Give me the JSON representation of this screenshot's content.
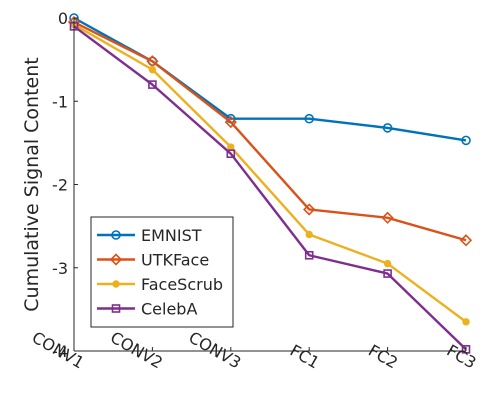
{
  "chart_data": {
    "type": "line",
    "title": "",
    "xlabel": "",
    "ylabel": "Cumulative Signal Content",
    "categories": [
      "CONV1",
      "CONV2",
      "CONV3",
      "FC1",
      "FC2",
      "FC3"
    ],
    "ylim": [
      -4,
      0
    ],
    "yticks": [
      0,
      -1,
      -2,
      -3,
      -4
    ],
    "grid": false,
    "legend_position": "bottom-left",
    "series": [
      {
        "name": "EMNIST",
        "color": "#0072BD",
        "marker": "circle",
        "values": [
          0.0,
          -0.52,
          -1.21,
          -1.21,
          -1.32,
          -1.47
        ]
      },
      {
        "name": "UTKFace",
        "color": "#D95319",
        "marker": "diamond",
        "values": [
          -0.05,
          -0.52,
          -1.25,
          -2.3,
          -2.4,
          -2.67
        ]
      },
      {
        "name": "FaceScrub",
        "color": "#EDB120",
        "marker": "dot",
        "values": [
          -0.08,
          -0.62,
          -1.55,
          -2.6,
          -2.95,
          -3.65
        ]
      },
      {
        "name": "CelebA",
        "color": "#7E2F8E",
        "marker": "square",
        "values": [
          -0.1,
          -0.8,
          -1.63,
          -2.85,
          -3.07,
          -3.98
        ]
      }
    ]
  }
}
